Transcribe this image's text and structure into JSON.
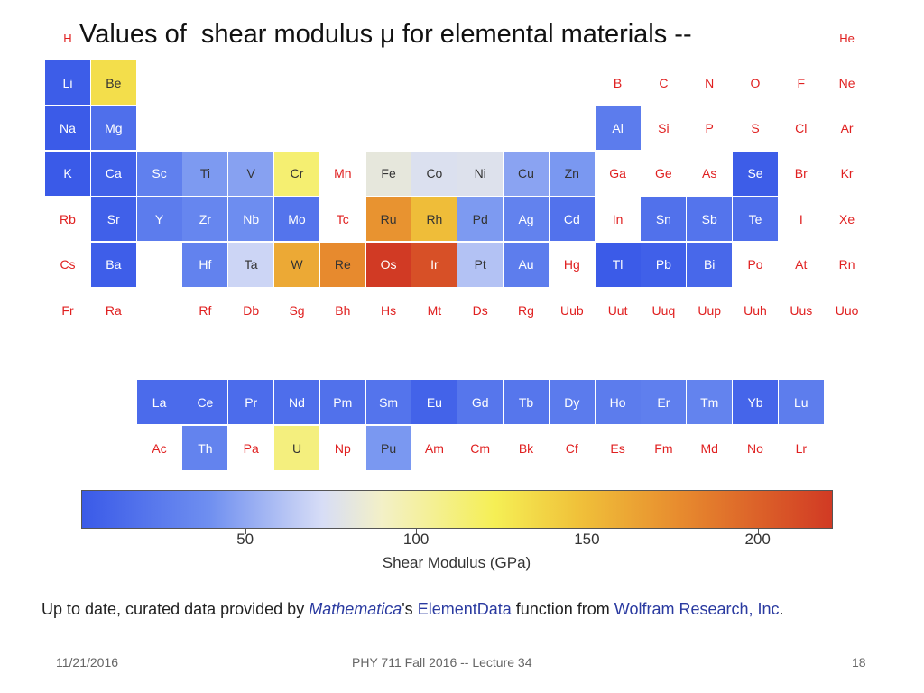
{
  "slide": {
    "title": "Values of  shear modulus μ for elemental materials --",
    "date": "11/21/2016",
    "course": "PHY 711  Fall 2016 -- Lecture 34",
    "page": "18"
  },
  "source": {
    "prefix": "Up to date, curated data provided by ",
    "mathematica": "Mathematica",
    "apostrophe_s": "'s ",
    "elementdata": "ElementData",
    "mid": " function from ",
    "wolfram": "Wolfram Research, Inc",
    "period": "."
  },
  "chart_data": {
    "type": "heatmap",
    "colorbar": {
      "label": "Shear Modulus (GPa)",
      "ticks": [
        50,
        100,
        150,
        200
      ],
      "range": [
        2,
        222
      ],
      "colors": {
        "low": "#3a5ae8",
        "mid": "#f5ef55",
        "high": "#d13a24",
        "missing": "#ffffff",
        "missing_text": "#e02020"
      }
    },
    "elements": [
      {
        "symbol": "H",
        "period": 1,
        "group": 1,
        "value": null
      },
      {
        "symbol": "He",
        "period": 1,
        "group": 18,
        "value": null
      },
      {
        "symbol": "Li",
        "period": 2,
        "group": 1,
        "value": 4
      },
      {
        "symbol": "Be",
        "period": 2,
        "group": 2,
        "value": 132
      },
      {
        "symbol": "B",
        "period": 2,
        "group": 13,
        "value": null
      },
      {
        "symbol": "C",
        "period": 2,
        "group": 14,
        "value": null
      },
      {
        "symbol": "N",
        "period": 2,
        "group": 15,
        "value": null
      },
      {
        "symbol": "O",
        "period": 2,
        "group": 16,
        "value": null
      },
      {
        "symbol": "F",
        "period": 2,
        "group": 17,
        "value": null
      },
      {
        "symbol": "Ne",
        "period": 2,
        "group": 18,
        "value": null
      },
      {
        "symbol": "Na",
        "period": 3,
        "group": 1,
        "value": 3
      },
      {
        "symbol": "Mg",
        "period": 3,
        "group": 2,
        "value": 17
      },
      {
        "symbol": "Al",
        "period": 3,
        "group": 13,
        "value": 26
      },
      {
        "symbol": "Si",
        "period": 3,
        "group": 14,
        "value": null
      },
      {
        "symbol": "P",
        "period": 3,
        "group": 15,
        "value": null
      },
      {
        "symbol": "S",
        "period": 3,
        "group": 16,
        "value": null
      },
      {
        "symbol": "Cl",
        "period": 3,
        "group": 17,
        "value": null
      },
      {
        "symbol": "Ar",
        "period": 3,
        "group": 18,
        "value": null
      },
      {
        "symbol": "K",
        "period": 4,
        "group": 1,
        "value": 1
      },
      {
        "symbol": "Ca",
        "period": 4,
        "group": 2,
        "value": 7
      },
      {
        "symbol": "Sc",
        "period": 4,
        "group": 3,
        "value": 29
      },
      {
        "symbol": "Ti",
        "period": 4,
        "group": 4,
        "value": 44
      },
      {
        "symbol": "V",
        "period": 4,
        "group": 5,
        "value": 47
      },
      {
        "symbol": "Cr",
        "period": 4,
        "group": 6,
        "value": 115
      },
      {
        "symbol": "Mn",
        "period": 4,
        "group": 7,
        "value": null
      },
      {
        "symbol": "Fe",
        "period": 4,
        "group": 8,
        "value": 82
      },
      {
        "symbol": "Co",
        "period": 4,
        "group": 9,
        "value": 75
      },
      {
        "symbol": "Ni",
        "period": 4,
        "group": 10,
        "value": 76
      },
      {
        "symbol": "Cu",
        "period": 4,
        "group": 11,
        "value": 48
      },
      {
        "symbol": "Zn",
        "period": 4,
        "group": 12,
        "value": 43
      },
      {
        "symbol": "Ga",
        "period": 4,
        "group": 13,
        "value": null
      },
      {
        "symbol": "Ge",
        "period": 4,
        "group": 14,
        "value": null
      },
      {
        "symbol": "As",
        "period": 4,
        "group": 15,
        "value": null
      },
      {
        "symbol": "Se",
        "period": 4,
        "group": 16,
        "value": 4
      },
      {
        "symbol": "Br",
        "period": 4,
        "group": 17,
        "value": null
      },
      {
        "symbol": "Kr",
        "period": 4,
        "group": 18,
        "value": null
      },
      {
        "symbol": "Rb",
        "period": 5,
        "group": 1,
        "value": null
      },
      {
        "symbol": "Sr",
        "period": 5,
        "group": 2,
        "value": 6
      },
      {
        "symbol": "Y",
        "period": 5,
        "group": 3,
        "value": 26
      },
      {
        "symbol": "Zr",
        "period": 5,
        "group": 4,
        "value": 33
      },
      {
        "symbol": "Nb",
        "period": 5,
        "group": 5,
        "value": 38
      },
      {
        "symbol": "Mo",
        "period": 5,
        "group": 6,
        "value": 20
      },
      {
        "symbol": "Tc",
        "period": 5,
        "group": 7,
        "value": null
      },
      {
        "symbol": "Ru",
        "period": 5,
        "group": 8,
        "value": 173
      },
      {
        "symbol": "Rh",
        "period": 5,
        "group": 9,
        "value": 150
      },
      {
        "symbol": "Pd",
        "period": 5,
        "group": 10,
        "value": 44
      },
      {
        "symbol": "Ag",
        "period": 5,
        "group": 11,
        "value": 30
      },
      {
        "symbol": "Cd",
        "period": 5,
        "group": 12,
        "value": 19
      },
      {
        "symbol": "In",
        "period": 5,
        "group": 13,
        "value": null
      },
      {
        "symbol": "Sn",
        "period": 5,
        "group": 14,
        "value": 18
      },
      {
        "symbol": "Sb",
        "period": 5,
        "group": 15,
        "value": 20
      },
      {
        "symbol": "Te",
        "period": 5,
        "group": 16,
        "value": 16
      },
      {
        "symbol": "I",
        "period": 5,
        "group": 17,
        "value": null
      },
      {
        "symbol": "Xe",
        "period": 5,
        "group": 18,
        "value": null
      },
      {
        "symbol": "Cs",
        "period": 6,
        "group": 1,
        "value": null
      },
      {
        "symbol": "Ba",
        "period": 6,
        "group": 2,
        "value": 5
      },
      {
        "symbol": "Hf",
        "period": 6,
        "group": 4,
        "value": 30
      },
      {
        "symbol": "Ta",
        "period": 6,
        "group": 5,
        "value": 69
      },
      {
        "symbol": "W",
        "period": 6,
        "group": 6,
        "value": 161
      },
      {
        "symbol": "Re",
        "period": 6,
        "group": 7,
        "value": 178
      },
      {
        "symbol": "Os",
        "period": 6,
        "group": 8,
        "value": 222
      },
      {
        "symbol": "Ir",
        "period": 6,
        "group": 9,
        "value": 210
      },
      {
        "symbol": "Pt",
        "period": 6,
        "group": 10,
        "value": 61
      },
      {
        "symbol": "Au",
        "period": 6,
        "group": 11,
        "value": 27
      },
      {
        "symbol": "Hg",
        "period": 6,
        "group": 12,
        "value": null
      },
      {
        "symbol": "Tl",
        "period": 6,
        "group": 13,
        "value": 3
      },
      {
        "symbol": "Pb",
        "period": 6,
        "group": 14,
        "value": 6
      },
      {
        "symbol": "Bi",
        "period": 6,
        "group": 15,
        "value": 12
      },
      {
        "symbol": "Po",
        "period": 6,
        "group": 16,
        "value": null
      },
      {
        "symbol": "At",
        "period": 6,
        "group": 17,
        "value": null
      },
      {
        "symbol": "Rn",
        "period": 6,
        "group": 18,
        "value": null
      },
      {
        "symbol": "Fr",
        "period": 7,
        "group": 1,
        "value": null
      },
      {
        "symbol": "Ra",
        "period": 7,
        "group": 2,
        "value": null
      },
      {
        "symbol": "Rf",
        "period": 7,
        "group": 4,
        "value": null
      },
      {
        "symbol": "Db",
        "period": 7,
        "group": 5,
        "value": null
      },
      {
        "symbol": "Sg",
        "period": 7,
        "group": 6,
        "value": null
      },
      {
        "symbol": "Bh",
        "period": 7,
        "group": 7,
        "value": null
      },
      {
        "symbol": "Hs",
        "period": 7,
        "group": 8,
        "value": null
      },
      {
        "symbol": "Mt",
        "period": 7,
        "group": 9,
        "value": null
      },
      {
        "symbol": "Ds",
        "period": 7,
        "group": 10,
        "value": null
      },
      {
        "symbol": "Rg",
        "period": 7,
        "group": 11,
        "value": null
      },
      {
        "symbol": "Uub",
        "period": 7,
        "group": 12,
        "value": null
      },
      {
        "symbol": "Uut",
        "period": 7,
        "group": 13,
        "value": null
      },
      {
        "symbol": "Uuq",
        "period": 7,
        "group": 14,
        "value": null
      },
      {
        "symbol": "Uup",
        "period": 7,
        "group": 15,
        "value": null
      },
      {
        "symbol": "Uuh",
        "period": 7,
        "group": 16,
        "value": null
      },
      {
        "symbol": "Uus",
        "period": 7,
        "group": 17,
        "value": null
      },
      {
        "symbol": "Uuo",
        "period": 7,
        "group": 18,
        "value": null
      },
      {
        "symbol": "La",
        "period": "lanthanide",
        "group": 3,
        "value": 14
      },
      {
        "symbol": "Ce",
        "period": "lanthanide",
        "group": 4,
        "value": 14
      },
      {
        "symbol": "Pr",
        "period": "lanthanide",
        "group": 5,
        "value": 15
      },
      {
        "symbol": "Nd",
        "period": "lanthanide",
        "group": 6,
        "value": 16
      },
      {
        "symbol": "Pm",
        "period": "lanthanide",
        "group": 7,
        "value": 18
      },
      {
        "symbol": "Sm",
        "period": "lanthanide",
        "group": 8,
        "value": 20
      },
      {
        "symbol": "Eu",
        "period": "lanthanide",
        "group": 9,
        "value": 8
      },
      {
        "symbol": "Gd",
        "period": "lanthanide",
        "group": 10,
        "value": 22
      },
      {
        "symbol": "Tb",
        "period": "lanthanide",
        "group": 11,
        "value": 22
      },
      {
        "symbol": "Dy",
        "period": "lanthanide",
        "group": 12,
        "value": 25
      },
      {
        "symbol": "Ho",
        "period": "lanthanide",
        "group": 13,
        "value": 26
      },
      {
        "symbol": "Er",
        "period": "lanthanide",
        "group": 14,
        "value": 28
      },
      {
        "symbol": "Tm",
        "period": "lanthanide",
        "group": 15,
        "value": 31
      },
      {
        "symbol": "Yb",
        "period": "lanthanide",
        "group": 16,
        "value": 10
      },
      {
        "symbol": "Lu",
        "period": "lanthanide",
        "group": 17,
        "value": 27
      },
      {
        "symbol": "Ac",
        "period": "actinide",
        "group": 3,
        "value": null
      },
      {
        "symbol": "Th",
        "period": "actinide",
        "group": 4,
        "value": 31
      },
      {
        "symbol": "Pa",
        "period": "actinide",
        "group": 5,
        "value": null
      },
      {
        "symbol": "U",
        "period": "actinide",
        "group": 6,
        "value": 111
      },
      {
        "symbol": "Np",
        "period": "actinide",
        "group": 7,
        "value": null
      },
      {
        "symbol": "Pu",
        "period": "actinide",
        "group": 8,
        "value": 43
      },
      {
        "symbol": "Am",
        "period": "actinide",
        "group": 9,
        "value": null
      },
      {
        "symbol": "Cm",
        "period": "actinide",
        "group": 10,
        "value": null
      },
      {
        "symbol": "Bk",
        "period": "actinide",
        "group": 11,
        "value": null
      },
      {
        "symbol": "Cf",
        "period": "actinide",
        "group": 12,
        "value": null
      },
      {
        "symbol": "Es",
        "period": "actinide",
        "group": 13,
        "value": null
      },
      {
        "symbol": "Fm",
        "period": "actinide",
        "group": 14,
        "value": null
      },
      {
        "symbol": "Md",
        "period": "actinide",
        "group": 15,
        "value": null
      },
      {
        "symbol": "No",
        "period": "actinide",
        "group": 16,
        "value": null
      },
      {
        "symbol": "Lr",
        "period": "actinide",
        "group": 17,
        "value": null
      }
    ]
  }
}
